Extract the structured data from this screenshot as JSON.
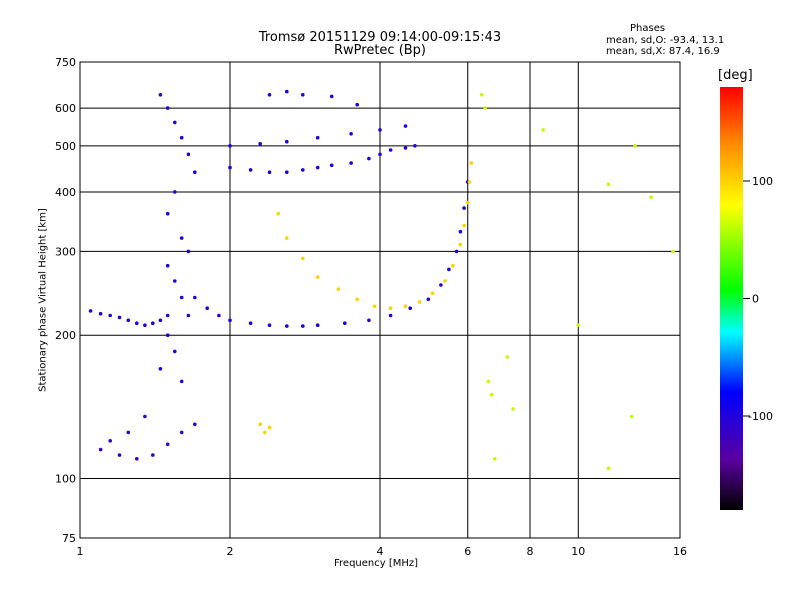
{
  "chart_data": {
    "type": "scatter",
    "title": "Tromsø 20151129 09:14:00-09:15:43",
    "subtitle": "RwPretec (Bp)",
    "xlabel": "Frequency [MHz]",
    "ylabel": "Stationary phase Virtual Height [km]",
    "x_scale": "log",
    "y_scale": "log",
    "xlim": [
      1,
      16
    ],
    "ylim": [
      75,
      750
    ],
    "x_ticks": [
      1,
      2,
      4,
      6,
      8,
      10,
      16
    ],
    "y_ticks": [
      75,
      100,
      200,
      300,
      400,
      500,
      600,
      750
    ],
    "grid": true,
    "stats": {
      "title": "Phases",
      "line1": "mean, sd,O: -93.4, 13.1",
      "line2": "mean, sd,X: 87.4, 16.9"
    },
    "colorbar": {
      "label": "[deg]",
      "range": [
        -180,
        180
      ],
      "ticks": [
        100,
        0,
        -100
      ]
    },
    "series": [
      {
        "x": [
          1.45,
          1.5,
          1.55,
          1.6,
          1.65,
          1.7,
          1.55,
          1.5,
          1.6,
          1.65
        ],
        "y": [
          640,
          600,
          560,
          520,
          480,
          440,
          400,
          360,
          320,
          300
        ],
        "color_value": -100
      },
      {
        "x": [
          1.5,
          1.55,
          1.6,
          1.65,
          1.5,
          1.55,
          1.45,
          1.6
        ],
        "y": [
          280,
          260,
          240,
          220,
          200,
          185,
          170,
          160
        ],
        "color_value": -100
      },
      {
        "x": [
          1.1,
          1.2,
          1.3,
          1.4,
          1.5,
          1.6,
          1.7,
          1.15,
          1.25,
          1.35
        ],
        "y": [
          115,
          112,
          110,
          112,
          118,
          125,
          130,
          120,
          125,
          135
        ],
        "color_value": -110
      },
      {
        "x": [
          1.05,
          1.1,
          1.15,
          1.2,
          1.25,
          1.3,
          1.35,
          1.4,
          1.45,
          1.5
        ],
        "y": [
          225,
          222,
          220,
          218,
          215,
          212,
          210,
          212,
          215,
          220
        ],
        "color_value": -100
      },
      {
        "x": [
          1.7,
          1.8,
          1.9,
          2.0,
          2.2,
          2.4,
          2.6,
          2.8,
          3.0,
          3.4,
          3.8,
          4.2,
          4.6,
          5.0,
          5.3,
          5.5,
          5.7,
          5.8,
          5.9,
          6.0
        ],
        "y": [
          240,
          228,
          220,
          215,
          212,
          210,
          209,
          209,
          210,
          212,
          215,
          220,
          228,
          238,
          255,
          275,
          300,
          330,
          370,
          420
        ],
        "color_value": -100
      },
      {
        "x": [
          2.5,
          2.6,
          2.8,
          3.0,
          3.3,
          3.6,
          3.9,
          4.2,
          4.5,
          4.8,
          5.1,
          5.4,
          5.6,
          5.8,
          5.9,
          6.0,
          6.05,
          6.1
        ],
        "y": [
          360,
          320,
          290,
          265,
          250,
          238,
          230,
          228,
          230,
          235,
          245,
          260,
          280,
          310,
          340,
          380,
          420,
          460
        ],
        "color_value": 100
      },
      {
        "x": [
          2.0,
          2.2,
          2.4,
          2.6,
          2.8,
          3.0,
          3.2,
          3.5,
          3.8,
          4.0,
          4.2,
          4.5,
          4.7
        ],
        "y": [
          450,
          445,
          440,
          440,
          445,
          450,
          455,
          460,
          470,
          480,
          490,
          495,
          500
        ],
        "color_value": -100
      },
      {
        "x": [
          2.0,
          2.3,
          2.6,
          3.0,
          3.5,
          4.0,
          4.5
        ],
        "y": [
          500,
          505,
          510,
          520,
          530,
          540,
          550
        ],
        "color_value": -100
      },
      {
        "x": [
          2.4,
          2.6,
          2.8,
          3.2,
          3.6
        ],
        "y": [
          640,
          650,
          640,
          635,
          610
        ],
        "color_value": -100
      },
      {
        "x": [
          2.3,
          2.35,
          2.4
        ],
        "y": [
          130,
          125,
          128
        ],
        "color_value": 100
      },
      {
        "x": [
          6.4,
          6.5,
          6.6,
          6.7,
          6.8,
          7.2,
          7.4,
          8.5,
          11.5,
          13.0,
          14.0,
          15.5,
          12.8,
          10.0,
          11.5
        ],
        "y": [
          640,
          600,
          160,
          150,
          110,
          180,
          140,
          540,
          415,
          500,
          390,
          300,
          135,
          210,
          105
        ],
        "color_value": 60
      }
    ]
  }
}
